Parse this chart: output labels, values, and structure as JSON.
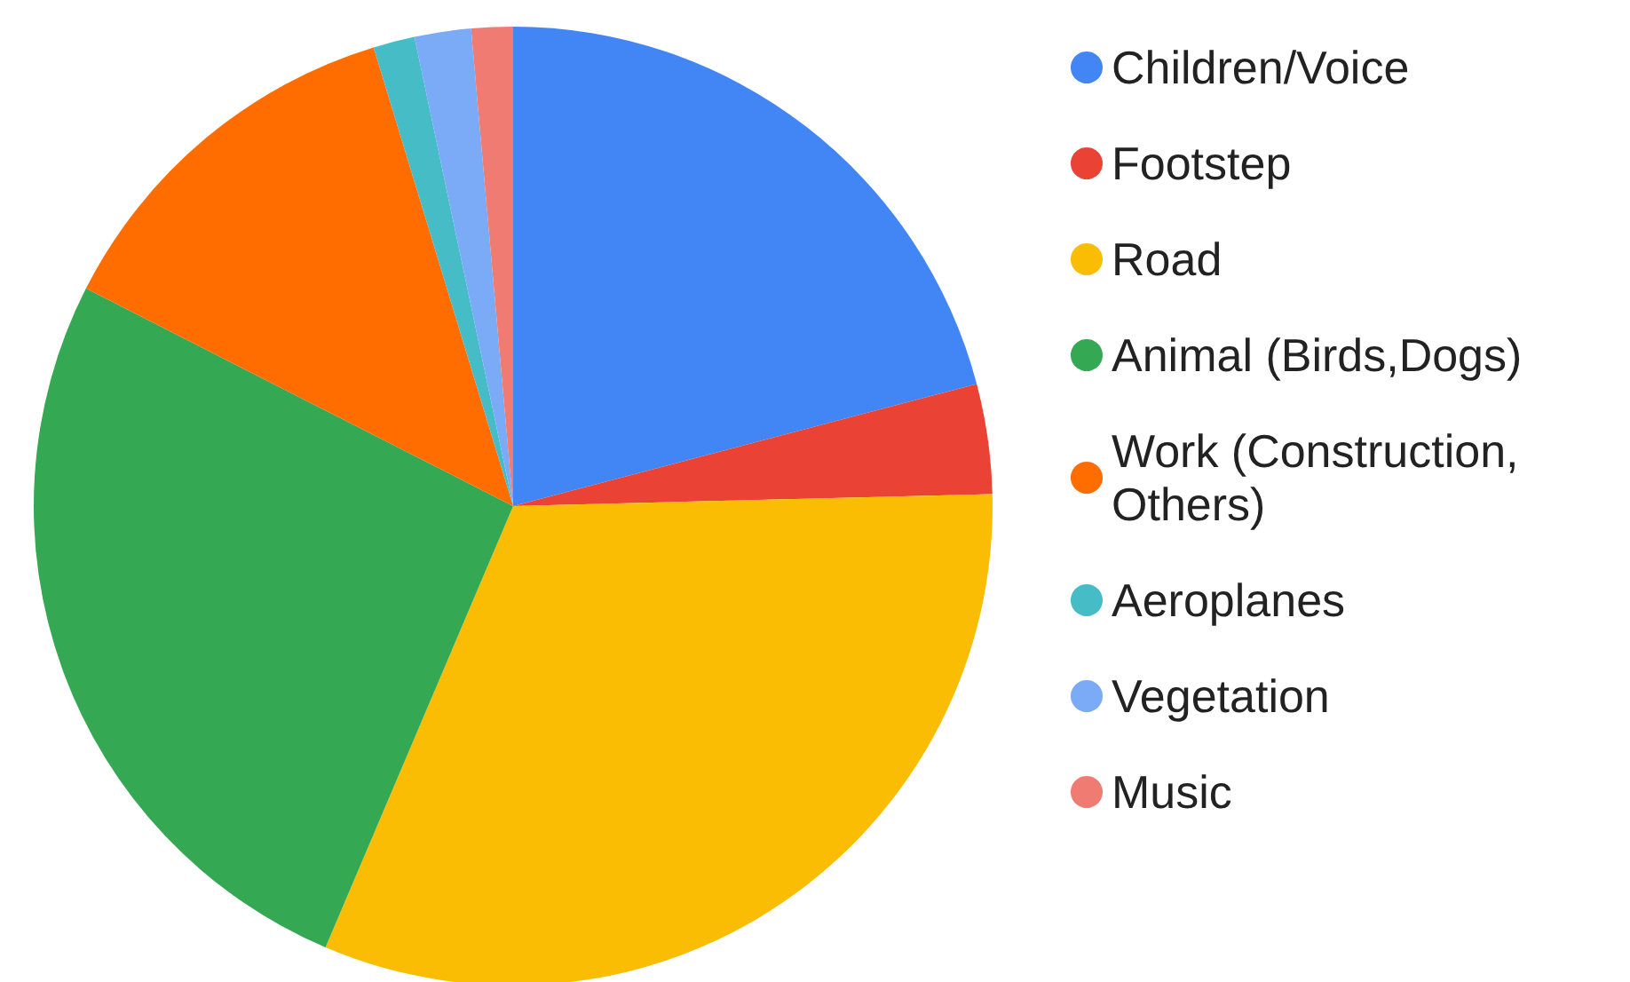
{
  "chart_data": {
    "type": "pie",
    "categories": [
      "Children/Voice",
      "Footstep",
      "Road",
      "Animal (Birds,Dogs)",
      "Work (Construction, Others)",
      "Aeroplanes",
      "Vegetation",
      "Music"
    ],
    "values": [
      20.9,
      3.7,
      31.8,
      26.1,
      12.8,
      1.4,
      1.9,
      1.4
    ],
    "colors": [
      "#4285f4",
      "#ea4335",
      "#fbbc04",
      "#34a853",
      "#ff6d01",
      "#46bdc6",
      "#7baaf7",
      "#f07b72"
    ],
    "legend": "right"
  }
}
